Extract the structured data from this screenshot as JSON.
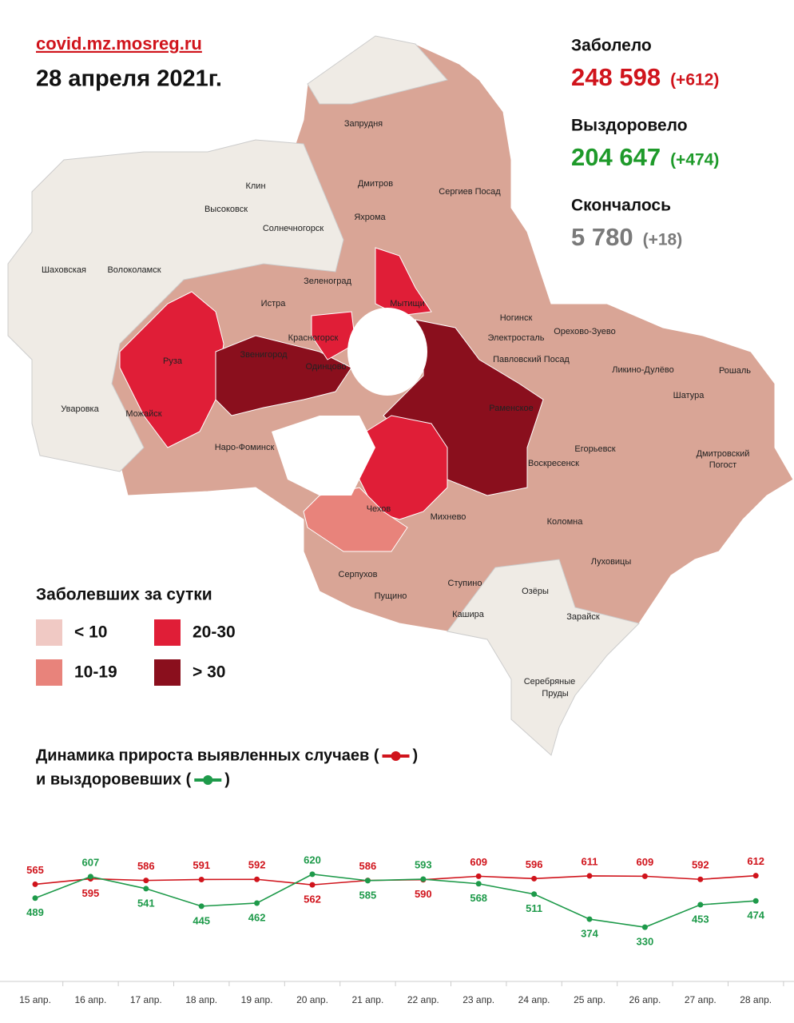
{
  "header": {
    "site": "covid.mz.mosreg.ru",
    "date": "28 апреля 2021г."
  },
  "stats": [
    {
      "label": "Заболело",
      "value": "248 598",
      "delta": "(+612)",
      "color": "#d0141c"
    },
    {
      "label": "Выздоровело",
      "value": "204 647",
      "delta": "(+474)",
      "color": "#1e9a2a"
    },
    {
      "label": "Скончалось",
      "value": "5 780",
      "delta": "(+18)",
      "color": "#7a7a7a"
    }
  ],
  "legend": {
    "title": "Заболевших за сутки",
    "items": [
      {
        "label": "< 10",
        "color": "#f0c9c4"
      },
      {
        "label": "20-30",
        "color": "#e01e37"
      },
      {
        "label": "10-19",
        "color": "#e8837b"
      },
      {
        "label": "> 30",
        "color": "#8a0f1d"
      }
    ]
  },
  "map": {
    "labels": [
      "Запрудня",
      "Дмитров",
      "Сергиев Посад",
      "Клин",
      "Высоковск",
      "Яхрома",
      "Солнечногорск",
      "Шаховская",
      "Волоколамск",
      "Зеленоград",
      "Истра",
      "Мытищи",
      "Красногорск",
      "Ногинск",
      "Электросталь",
      "Орехово-Зуево",
      "Павловский Посад",
      "Звенигород",
      "Одинцово",
      "Ликино-Дулёво",
      "Рошаль",
      "Руза",
      "Шатура",
      "Раменское",
      "Уваровка",
      "Можайск",
      "Наро-Фоминск",
      "Егорьевск",
      "Воскресенск",
      "Дмитровский",
      "Погост",
      "Чехов",
      "Михнево",
      "Коломна",
      "Луховицы",
      "Серпухов",
      "Пущино",
      "Ступино",
      "Озёры",
      "Кашира",
      "Зарайск",
      "Серебряные",
      "Пруды"
    ]
  },
  "chart_data": {
    "type": "line",
    "title_lines": [
      [
        "Динамика прироста выявленных случаев (",
        ")"
      ],
      [
        "и выздоровевших (",
        ")"
      ]
    ],
    "categories": [
      "15 апр.",
      "16 апр.",
      "17 апр.",
      "18 апр.",
      "19 апр.",
      "20 апр.",
      "21 апр.",
      "22 апр.",
      "23 апр.",
      "24 апр.",
      "25 апр.",
      "26 апр.",
      "27 апр.",
      "28 апр."
    ],
    "series": [
      {
        "color": "#d0141c",
        "values": [
          565,
          595,
          586,
          591,
          592,
          562,
          586,
          590,
          609,
          596,
          611,
          609,
          592,
          612
        ]
      },
      {
        "color": "#1e9a4a",
        "values": [
          489,
          607,
          541,
          445,
          462,
          620,
          585,
          593,
          568,
          511,
          374,
          330,
          453,
          474
        ]
      }
    ],
    "ylim": [
      300,
      650
    ]
  }
}
